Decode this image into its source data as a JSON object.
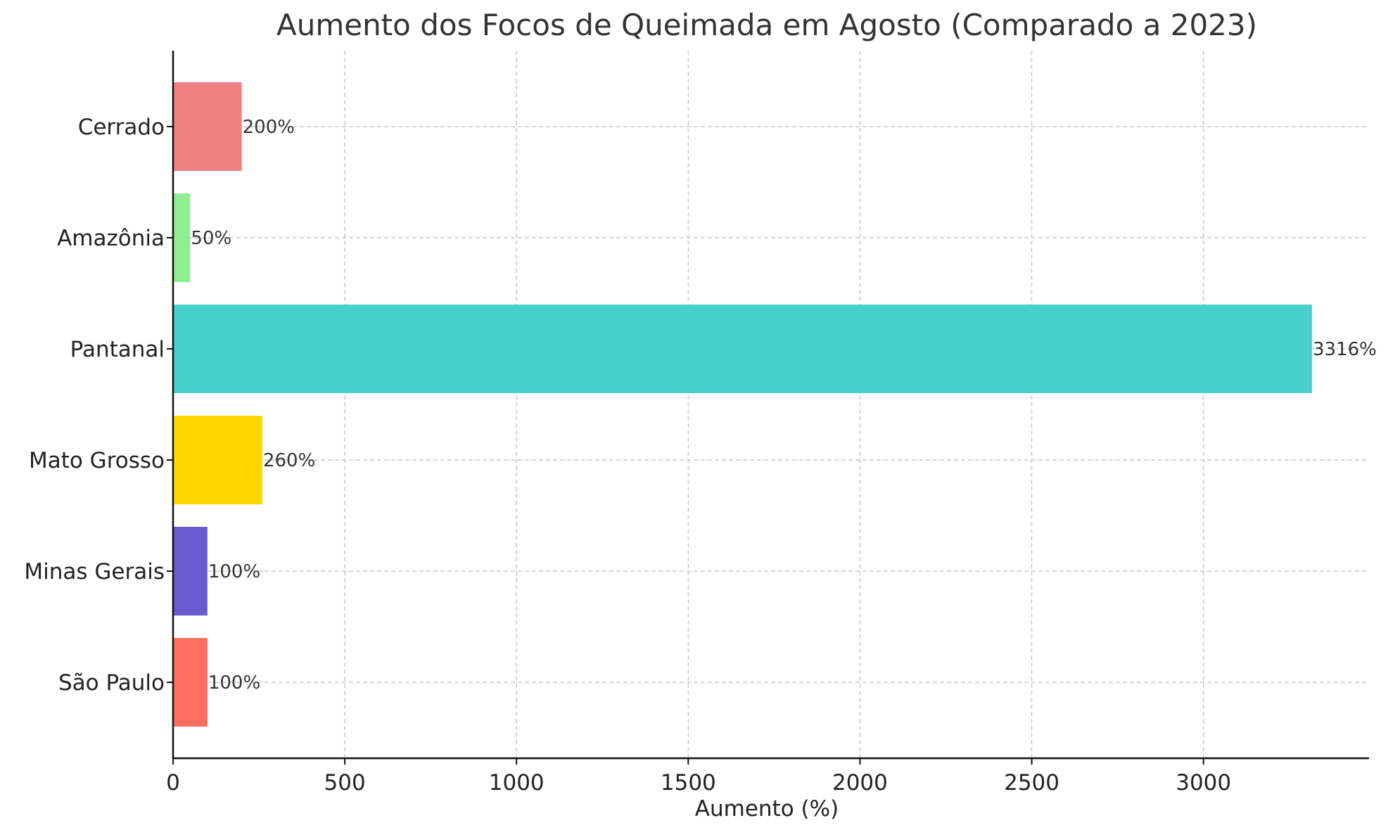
{
  "chart_data": {
    "type": "bar",
    "orientation": "horizontal",
    "title": "Aumento dos Focos de Queimada em Agosto (Comparado a 2023)",
    "xlabel": "Aumento (%)",
    "ylabel": "",
    "categories": [
      "Cerrado",
      "Amazônia",
      "Pantanal",
      "Mato Grosso",
      "Minas Gerais",
      "São Paulo"
    ],
    "values": [
      200,
      50,
      3316,
      260,
      100,
      100
    ],
    "value_labels": [
      "200%",
      "50%",
      "3316%",
      "260%",
      "100%",
      "100%"
    ],
    "colors": [
      "#f08080",
      "#90ee90",
      "#48d1cc",
      "#ffd700",
      "#6a5acd",
      "#ff6f61"
    ],
    "xlim": [
      0,
      3482
    ],
    "xticks": [
      0,
      500,
      1000,
      1500,
      2000,
      2500,
      3000
    ],
    "xtick_labels": [
      "0",
      "500",
      "1000",
      "1500",
      "2000",
      "2500",
      "3000"
    ],
    "grid": true,
    "legend": "none"
  }
}
